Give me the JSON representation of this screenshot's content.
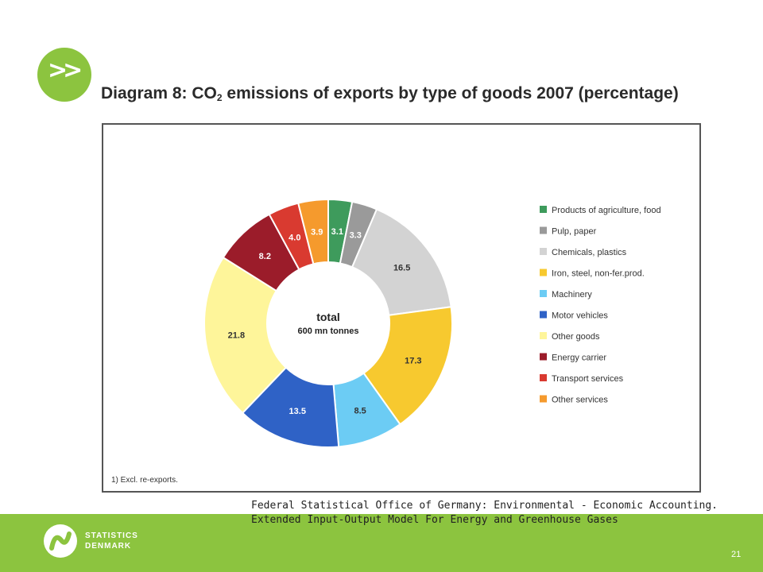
{
  "slide": {
    "title_main": "Diagram 8: CO",
    "title_sub": "2",
    "title_rest": " emissions of exports by type of goods 2007 (percentage)",
    "source_line1": "Federal Statistical Office of Germany: Environmental - Economic Accounting.",
    "source_line2": "Extended Input-Output Model For Energy and Greenhouse Gases",
    "footnote": "1) Excl. re-exports.",
    "page_number": "21",
    "logo_line1": "STATISTICS",
    "logo_line2": "DENMARK",
    "badge_glyph": ">>",
    "colors": {
      "brand_green": "#8cc43f"
    }
  },
  "chart_data": {
    "type": "pie",
    "title": "Diagram 8: CO2 emissions of exports by type of goods 2007 (percentage)",
    "center_label_line1": "total",
    "center_label_line2": "600 mn tonnes",
    "legend_position": "right",
    "categories": [
      "Products of agriculture, food",
      "Pulp, paper",
      "Chemicals, plastics",
      "Iron, steel, non-fer.prod.",
      "Machinery",
      "Motor vehicles",
      "Other goods",
      "Energy carrier",
      "Transport services",
      "Other services"
    ],
    "values": [
      3.1,
      3.3,
      16.5,
      17.3,
      8.5,
      13.5,
      21.8,
      8.2,
      4.0,
      3.9
    ],
    "labels": [
      "3.1",
      "3.3",
      "16.5",
      "17.3",
      "8.5",
      "13.5",
      "21.8",
      "8.2",
      "4.0",
      "3.9"
    ],
    "colors": [
      "#3e9b5c",
      "#9a9a9a",
      "#d3d3d3",
      "#f7c92f",
      "#6cccf4",
      "#2f62c6",
      "#fef59a",
      "#9b1c2a",
      "#d93a30",
      "#f59a2d"
    ]
  }
}
